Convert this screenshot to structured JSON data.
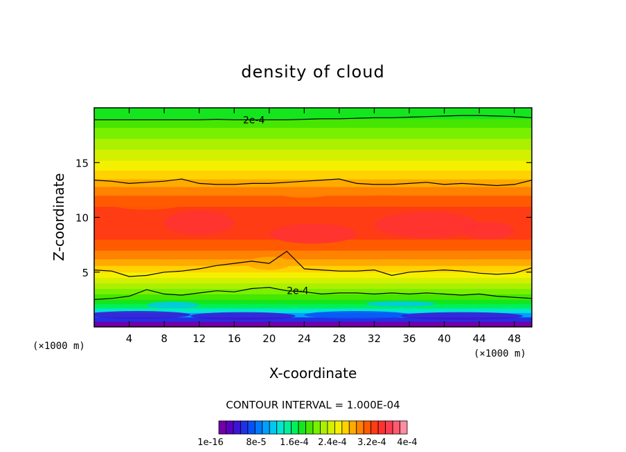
{
  "chart_data": {
    "type": "heatmap",
    "title": "density of cloud",
    "xlabel": "X-coordinate",
    "ylabel": "Z-coordinate",
    "x_unit": "(×1000 m)",
    "y_unit": "(×1000 m)",
    "xlim": [
      0,
      50
    ],
    "ylim": [
      0,
      20
    ],
    "x_ticks": [
      4,
      8,
      12,
      16,
      20,
      24,
      28,
      32,
      36,
      40,
      44,
      48
    ],
    "x_tick_labels": [
      "4",
      "8",
      "12",
      "16",
      "20",
      "24",
      "28",
      "32",
      "36",
      "40",
      "44",
      "48"
    ],
    "y_ticks": [
      5,
      10,
      15
    ],
    "y_tick_labels": [
      "5",
      "10",
      "15"
    ],
    "contour_interval_text": "CONTOUR INTERVAL = 1.000E-04",
    "contour_lines": [
      {
        "label": "2e-4",
        "level": 0.0002,
        "x": [
          0,
          2,
          4,
          6,
          8,
          10,
          12,
          14,
          16,
          18,
          20,
          22,
          24,
          26,
          28,
          30,
          32,
          34,
          36,
          38,
          40,
          42,
          44,
          46,
          48,
          50
        ],
        "z": [
          18.9,
          18.9,
          18.9,
          18.9,
          18.9,
          18.9,
          18.9,
          18.95,
          18.9,
          18.9,
          18.9,
          18.9,
          18.95,
          19.0,
          19.0,
          19.05,
          19.1,
          19.1,
          19.15,
          19.2,
          19.25,
          19.3,
          19.3,
          19.25,
          19.2,
          19.1
        ]
      },
      {
        "label": "",
        "level": 0.0002,
        "x": [
          0,
          2,
          4,
          6,
          8,
          10,
          12,
          14,
          16,
          18,
          20,
          22,
          24,
          26,
          28,
          30,
          32,
          34,
          36,
          38,
          40,
          42,
          44,
          46,
          48,
          50
        ],
        "z": [
          13.4,
          13.3,
          13.1,
          13.2,
          13.3,
          13.5,
          13.1,
          13.0,
          13.0,
          13.1,
          13.1,
          13.2,
          13.3,
          13.4,
          13.5,
          13.1,
          13.0,
          13.0,
          13.1,
          13.2,
          13.0,
          13.1,
          13.0,
          12.9,
          13.0,
          13.4
        ]
      },
      {
        "label": "",
        "level": 0.0002,
        "x": [
          0,
          2,
          4,
          6,
          8,
          10,
          12,
          14,
          16,
          18,
          20,
          22,
          24,
          26,
          28,
          30,
          32,
          34,
          36,
          38,
          40,
          42,
          44,
          46,
          48,
          50
        ],
        "z": [
          5.2,
          5.1,
          4.6,
          4.7,
          5.0,
          5.1,
          5.3,
          5.6,
          5.8,
          6.0,
          5.8,
          6.9,
          5.3,
          5.2,
          5.1,
          5.1,
          5.2,
          4.7,
          5.0,
          5.1,
          5.2,
          5.1,
          4.9,
          4.8,
          4.9,
          5.4
        ]
      },
      {
        "label": "2e-4",
        "level": 0.0002,
        "x": [
          0,
          2,
          4,
          6,
          8,
          10,
          12,
          14,
          16,
          18,
          20,
          22,
          24,
          26,
          28,
          30,
          32,
          34,
          36,
          38,
          40,
          42,
          44,
          46,
          48,
          50
        ],
        "z": [
          2.5,
          2.6,
          2.8,
          3.4,
          3.0,
          2.9,
          3.1,
          3.3,
          3.2,
          3.5,
          3.6,
          3.3,
          3.2,
          3.0,
          3.1,
          3.1,
          3.0,
          3.1,
          3.0,
          3.1,
          3.0,
          2.9,
          3.0,
          2.8,
          2.7,
          2.6
        ]
      }
    ],
    "color_levels": [
      "#7000a8",
      "#5a00c0",
      "#3c14d2",
      "#2030e6",
      "#0850f5",
      "#0078ff",
      "#00a0ff",
      "#00c8f0",
      "#00e6d2",
      "#00f09a",
      "#00f05a",
      "#14e61e",
      "#46e600",
      "#78f000",
      "#aaf000",
      "#d2f000",
      "#f5f000",
      "#ffd200",
      "#ffaa00",
      "#ff8200",
      "#ff5a00",
      "#ff3c14",
      "#ff3232",
      "#ff3c50",
      "#ff5a6e",
      "#ff8ca0"
    ],
    "colorbar_labels": [
      "1e-16",
      "8e-5",
      "1.6e-4",
      "2.4e-4",
      "3.2e-4",
      "4e-4"
    ]
  }
}
